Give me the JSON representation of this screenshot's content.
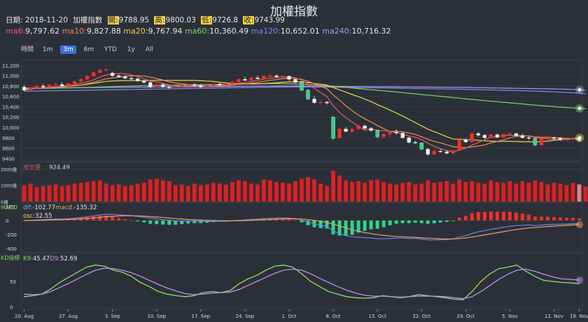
{
  "title": "加權指數",
  "info": {
    "date_label": "日期:",
    "date": "2018-11-20",
    "name": "加權指數",
    "open_label": "開:",
    "open": "9788.95",
    "high_label": "高:",
    "high": "9800.03",
    "low_label": "低:",
    "low": "9726.8",
    "close_label": "收:",
    "close": "9743.99"
  },
  "ma_legend": [
    {
      "label": "ma6:",
      "value": "9,797.62",
      "color": "#f05a5a"
    },
    {
      "label": "ma10:",
      "value": "9,827.88",
      "color": "#f08a5a"
    },
    {
      "label": "ma20:",
      "value": "9,767.94",
      "color": "#f2d24b"
    },
    {
      "label": "ma60:",
      "value": "10,360.49",
      "color": "#7ed36b"
    },
    {
      "label": "ma120:",
      "value": "10,652.01",
      "color": "#7d8cf0"
    },
    {
      "label": "ma240:",
      "value": "10,716.32",
      "color": "#b594f0"
    }
  ],
  "zoom": {
    "label": "時間",
    "options": [
      "1m",
      "3m",
      "6m",
      "YTD",
      "1y",
      "All"
    ],
    "selected": "3m"
  },
  "colors": {
    "up": "#f0312a",
    "down": "#2ed48f",
    "bg": "#2b3038",
    "grid": "#3a4049",
    "volume": "#e02020"
  },
  "chart_data": [
    {
      "type": "candlestick",
      "panel": "price",
      "y_ticks": [
        "11,200",
        "11,000",
        "10,800",
        "10,600",
        "10,400",
        "10,200",
        "10,000",
        "9800",
        "9600",
        "9400"
      ],
      "ylim": [
        9350,
        11300
      ],
      "x_ticks": [
        "20. Aug",
        "27. Aug",
        "3. Sep",
        "10. Sep",
        "17. Sep",
        "24. Sep",
        "1. Oct",
        "8. Oct",
        "15. Oct",
        "22. Oct",
        "29. Oct",
        "5. Nov",
        "12. Nov",
        "19. Nov"
      ],
      "ohlc": [
        [
          10780,
          10820,
          10700,
          10720
        ],
        [
          10720,
          10790,
          10690,
          10760
        ],
        [
          10760,
          10820,
          10740,
          10800
        ],
        [
          10800,
          10840,
          10760,
          10780
        ],
        [
          10780,
          10830,
          10750,
          10820
        ],
        [
          10820,
          10870,
          10790,
          10830
        ],
        [
          10830,
          10870,
          10780,
          10800
        ],
        [
          10800,
          10860,
          10780,
          10850
        ],
        [
          10850,
          10910,
          10830,
          10890
        ],
        [
          10890,
          10950,
          10870,
          10930
        ],
        [
          10930,
          11010,
          10910,
          10990
        ],
        [
          10990,
          11080,
          10970,
          11060
        ],
        [
          11060,
          11130,
          11030,
          11110
        ],
        [
          11110,
          11150,
          11080,
          11120
        ],
        [
          11050,
          11080,
          10980,
          11000
        ],
        [
          11000,
          11030,
          10960,
          10980
        ],
        [
          10980,
          11010,
          10940,
          10950
        ],
        [
          10950,
          10980,
          10920,
          10940
        ],
        [
          10940,
          10960,
          10880,
          10900
        ],
        [
          10900,
          10920,
          10850,
          10870
        ],
        [
          10870,
          10900,
          10760,
          10780
        ],
        [
          10780,
          10850,
          10760,
          10830
        ],
        [
          10830,
          10860,
          10770,
          10790
        ],
        [
          10790,
          10810,
          10750,
          10770
        ],
        [
          10770,
          10800,
          10740,
          10790
        ],
        [
          10790,
          10830,
          10770,
          10820
        ],
        [
          10820,
          10850,
          10790,
          10830
        ],
        [
          10830,
          10860,
          10790,
          10810
        ],
        [
          10810,
          10840,
          10760,
          10780
        ],
        [
          10780,
          10830,
          10760,
          10800
        ],
        [
          10800,
          10850,
          10780,
          10840
        ],
        [
          10840,
          10870,
          10800,
          10820
        ],
        [
          10820,
          10860,
          10790,
          10840
        ],
        [
          10840,
          10900,
          10820,
          10880
        ],
        [
          10880,
          10950,
          10860,
          10930
        ],
        [
          10930,
          10980,
          10900,
          10910
        ],
        [
          10910,
          10980,
          10890,
          10960
        ],
        [
          10960,
          11000,
          10930,
          10940
        ],
        [
          10940,
          11010,
          10920,
          10990
        ],
        [
          10990,
          11040,
          10960,
          11000
        ],
        [
          11000,
          11030,
          10960,
          10980
        ],
        [
          10980,
          11010,
          10950,
          10990
        ],
        [
          10990,
          11000,
          10900,
          10930
        ],
        [
          10930,
          10950,
          10850,
          10870
        ],
        [
          10870,
          10890,
          10700,
          10720
        ],
        [
          10720,
          10740,
          10530,
          10550
        ],
        [
          10550,
          10600,
          10460,
          10480
        ],
        [
          10480,
          10520,
          10440,
          10490
        ],
        [
          10490,
          10510,
          10440,
          10470
        ],
        [
          10200,
          10220,
          9760,
          9790
        ],
        [
          9800,
          9990,
          9780,
          9970
        ],
        [
          9970,
          10010,
          9910,
          9920
        ],
        [
          9920,
          9990,
          9890,
          9970
        ],
        [
          9970,
          10060,
          9950,
          10030
        ],
        [
          10030,
          10050,
          9960,
          9980
        ],
        [
          9980,
          10010,
          9920,
          9940
        ],
        [
          9940,
          9960,
          9790,
          9820
        ],
        [
          9820,
          9890,
          9780,
          9870
        ],
        [
          9870,
          9930,
          9800,
          9910
        ],
        [
          9910,
          9960,
          9860,
          9890
        ],
        [
          9890,
          9910,
          9780,
          9800
        ],
        [
          9800,
          9820,
          9690,
          9710
        ],
        [
          9710,
          9740,
          9680,
          9700
        ],
        [
          9700,
          9710,
          9560,
          9580
        ],
        [
          9580,
          9600,
          9450,
          9480
        ],
        [
          9480,
          9560,
          9460,
          9540
        ],
        [
          9540,
          9580,
          9510,
          9530
        ],
        [
          9530,
          9560,
          9480,
          9500
        ],
        [
          9500,
          9560,
          9470,
          9550
        ],
        [
          9550,
          9780,
          9540,
          9760
        ],
        [
          9760,
          9790,
          9700,
          9720
        ],
        [
          9720,
          9900,
          9710,
          9880
        ],
        [
          9880,
          9910,
          9820,
          9850
        ],
        [
          9850,
          9870,
          9780,
          9800
        ],
        [
          9800,
          9880,
          9780,
          9860
        ],
        [
          9860,
          9880,
          9790,
          9810
        ],
        [
          9810,
          9880,
          9790,
          9870
        ],
        [
          9870,
          9910,
          9840,
          9880
        ],
        [
          9880,
          9890,
          9820,
          9840
        ],
        [
          9840,
          9880,
          9780,
          9800
        ],
        [
          9800,
          9830,
          9760,
          9790
        ],
        [
          9790,
          9800,
          9640,
          9660
        ],
        [
          9660,
          9790,
          9650,
          9780
        ],
        [
          9780,
          9830,
          9740,
          9800
        ],
        [
          9800,
          9820,
          9760,
          9790
        ],
        [
          9790,
          9810,
          9740,
          9760
        ],
        [
          9760,
          9800,
          9730,
          9770
        ],
        [
          9770,
          9810,
          9740,
          9790
        ],
        [
          9788.95,
          9800.03,
          9726.8,
          9743.99
        ]
      ],
      "ma60": [
        10750,
        10752,
        10754,
        10756,
        10758,
        10760,
        10762,
        10764,
        10766,
        10768,
        10772,
        10776,
        10780,
        10784,
        10788,
        10792,
        10796,
        10800,
        10804,
        10808,
        10810,
        10812,
        10814,
        10816,
        10818,
        10820,
        10822,
        10824,
        10826,
        10828,
        10830,
        10832,
        10834,
        10836,
        10838,
        10840,
        10842,
        10844,
        10846,
        10848,
        10848,
        10846,
        10844,
        10840,
        10836,
        10830,
        10822,
        10814,
        10806,
        10796,
        10785,
        10774,
        10763,
        10752,
        10740,
        10729,
        10718,
        10707,
        10696,
        10685,
        10673,
        10661,
        10649,
        10637,
        10625,
        10613,
        10601,
        10589,
        10577,
        10565,
        10553,
        10541,
        10530,
        10519,
        10508,
        10497,
        10486,
        10475,
        10464,
        10453,
        10442,
        10431,
        10421,
        10411,
        10401,
        10392,
        10384,
        10376,
        10368,
        10360.49
      ],
      "ma120": [
        10700,
        10702,
        10704,
        10706,
        10708,
        10710,
        10712,
        10714,
        10716,
        10718,
        10720,
        10722,
        10724,
        10726,
        10728,
        10730,
        10732,
        10734,
        10736,
        10738,
        10740,
        10742,
        10744,
        10746,
        10748,
        10750,
        10752,
        10754,
        10756,
        10758,
        10760,
        10762,
        10764,
        10766,
        10768,
        10770,
        10772,
        10774,
        10776,
        10778,
        10780,
        10781,
        10782,
        10783,
        10784,
        10784,
        10783,
        10782,
        10781,
        10779,
        10777,
        10775,
        10773,
        10771,
        10769,
        10767,
        10765,
        10763,
        10761,
        10759,
        10757,
        10755,
        10753,
        10751,
        10749,
        10747,
        10745,
        10743,
        10741,
        10739,
        10736,
        10733,
        10730,
        10727,
        10724,
        10721,
        10718,
        10715,
        10712,
        10709,
        10705,
        10701,
        10697,
        10692,
        10687,
        10682,
        10676,
        10670,
        10661,
        10652.01
      ],
      "ma240": [
        10760,
        10761,
        10762,
        10763,
        10764,
        10765,
        10766,
        10767,
        10768,
        10769,
        10770,
        10771,
        10772,
        10773,
        10774,
        10775,
        10776,
        10777,
        10778,
        10779,
        10780,
        10781,
        10782,
        10783,
        10784,
        10785,
        10786,
        10787,
        10788,
        10789,
        10790,
        10791,
        10792,
        10793,
        10794,
        10795,
        10796,
        10797,
        10798,
        10799,
        10800,
        10800,
        10800,
        10800,
        10799,
        10798,
        10797,
        10796,
        10795,
        10794,
        10793,
        10792,
        10791,
        10790,
        10789,
        10788,
        10787,
        10786,
        10785,
        10784,
        10783,
        10782,
        10781,
        10780,
        10779,
        10778,
        10777,
        10776,
        10775,
        10774,
        10772,
        10770,
        10768,
        10766,
        10764,
        10762,
        10760,
        10758,
        10756,
        10754,
        10752,
        10750,
        10748,
        10746,
        10744,
        10741,
        10738,
        10735,
        10726,
        10716.32
      ]
    },
    {
      "type": "bar",
      "panel": "volume",
      "label": "成交量",
      "value": "924.49",
      "y_ticks": [
        "2000億",
        "1000億",
        "0億"
      ],
      "ylim": [
        0,
        2400
      ],
      "values": [
        1000,
        1100,
        900,
        950,
        1000,
        1050,
        950,
        1000,
        1100,
        1150,
        1200,
        1250,
        1300,
        1100,
        1000,
        1050,
        950,
        1000,
        1100,
        1150,
        1350,
        1400,
        1300,
        1250,
        1000,
        1050,
        950,
        1100,
        1000,
        1050,
        1150,
        1100,
        1050,
        1200,
        1300,
        1250,
        1100,
        1050,
        1350,
        1300,
        1200,
        1150,
        1100,
        1250,
        1400,
        1500,
        1350,
        1100,
        950,
        1900,
        1600,
        1300,
        1200,
        1250,
        1150,
        1300,
        1350,
        1200,
        1100,
        1050,
        1150,
        1200,
        1050,
        1100,
        1300,
        1150,
        1200,
        1250,
        1100,
        1350,
        1200,
        1250,
        1150,
        1100,
        1300,
        1200,
        1150,
        1250,
        1100,
        1250,
        1150,
        1300,
        1200,
        1050,
        1150,
        1100,
        1000,
        1150,
        1050,
        924.49
      ]
    },
    {
      "type": "line",
      "panel": "macd",
      "label": "MACD",
      "dif_label": "dif:",
      "dif": "-102.77",
      "macd_label": "macd:",
      "macd": "-135.32",
      "osc_label": "osc:",
      "osc": "32.55",
      "y_ticks": [
        "200",
        "0",
        "-200",
        "-400"
      ],
      "ylim": [
        -450,
        250
      ]
    },
    {
      "type": "line",
      "panel": "kd",
      "label": "KD指標",
      "k_label": "K9:",
      "k": "45.47",
      "d_label": "D9:",
      "d": "52.69",
      "y_ticks": [
        "50",
        "0"
      ],
      "ylim": [
        -5,
        105
      ],
      "k_values": [
        20,
        22,
        25,
        35,
        48,
        58,
        68,
        78,
        82,
        80,
        72,
        68,
        60,
        48,
        40,
        30,
        25,
        22,
        20,
        22,
        28,
        30,
        28,
        32,
        45,
        55,
        62,
        72,
        80,
        82,
        78,
        65,
        50,
        40,
        30,
        25,
        20,
        18,
        17,
        18,
        22,
        20,
        18,
        20,
        24,
        22,
        20,
        18,
        15,
        14,
        30,
        50,
        65,
        75,
        78,
        82,
        70,
        60,
        52,
        50,
        48,
        47,
        45.47
      ],
      "d_values": [
        25,
        24,
        25,
        30,
        38,
        46,
        55,
        64,
        72,
        76,
        75,
        72,
        67,
        60,
        52,
        44,
        37,
        31,
        26,
        24,
        25,
        27,
        28,
        29,
        34,
        42,
        50,
        58,
        66,
        72,
        74,
        72,
        65,
        56,
        48,
        40,
        33,
        27,
        23,
        21,
        21,
        20,
        19,
        20,
        21,
        21,
        21,
        20,
        18,
        16,
        20,
        30,
        42,
        54,
        64,
        72,
        74,
        70,
        64,
        59,
        55,
        54,
        52.69
      ]
    }
  ]
}
